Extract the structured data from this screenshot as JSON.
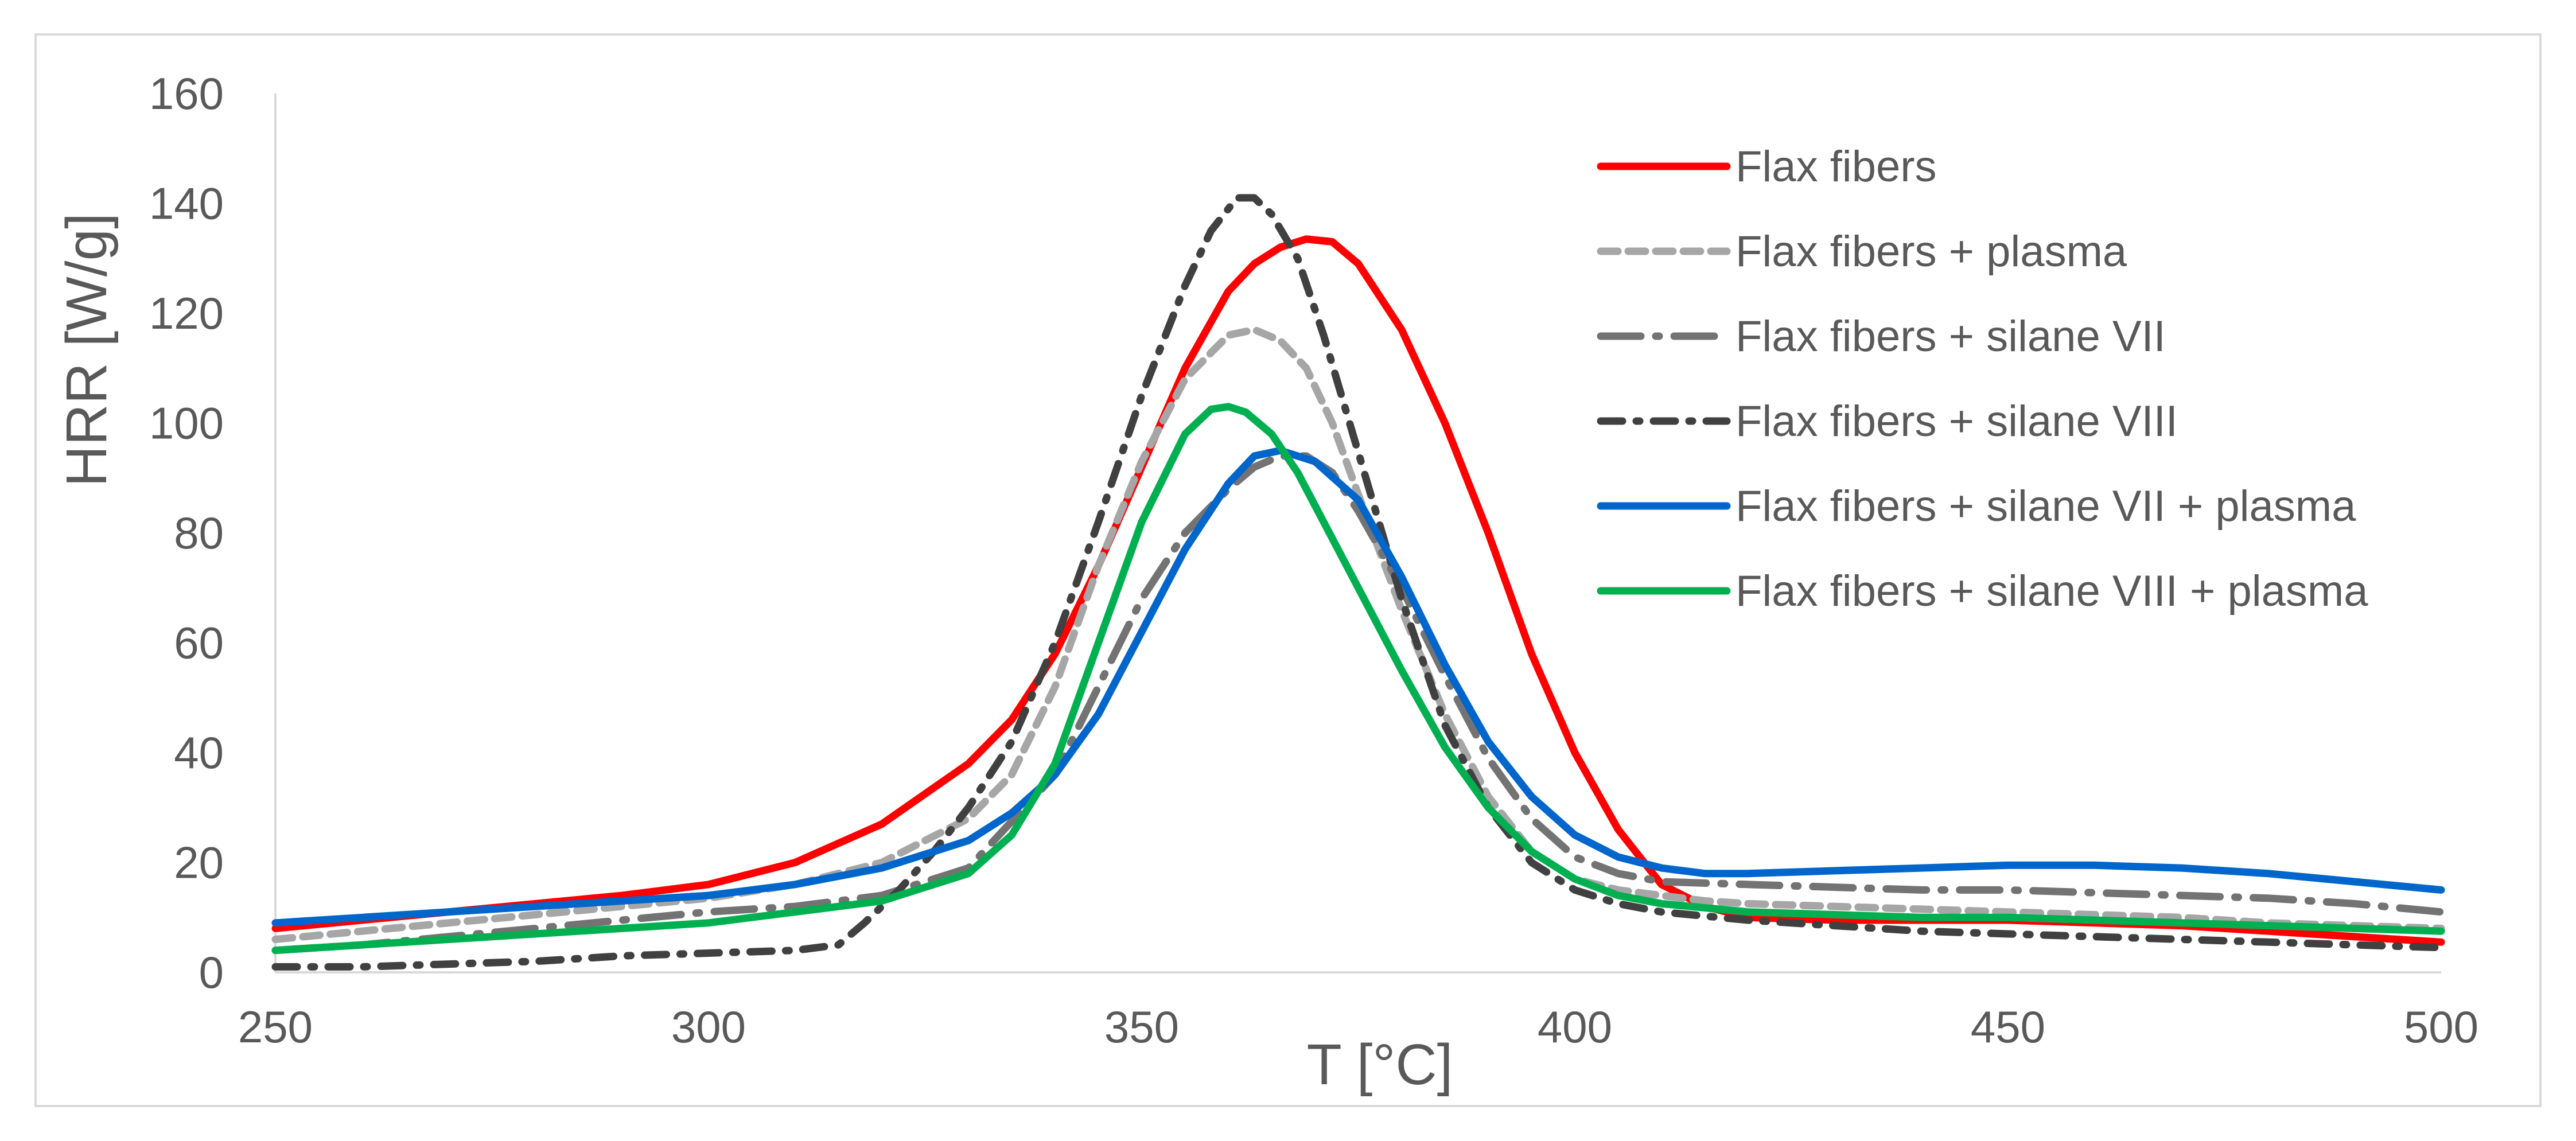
{
  "chart_data": {
    "type": "line",
    "title": "",
    "xlabel": "T [°C]",
    "ylabel": "HRR [W/g]",
    "xlim": [
      250,
      500
    ],
    "ylim": [
      0,
      160
    ],
    "xticks": [
      250,
      300,
      350,
      400,
      450,
      500
    ],
    "yticks": [
      0,
      20,
      40,
      60,
      80,
      100,
      120,
      140,
      160
    ],
    "grid": false,
    "legend_position": "top-right",
    "series": [
      {
        "name": "Flax fibers",
        "color": "#ff0000",
        "style": "solid",
        "x": [
          250,
          260,
          270,
          280,
          290,
          300,
          310,
          320,
          330,
          335,
          340,
          345,
          350,
          355,
          360,
          363,
          366,
          369,
          372,
          375,
          380,
          385,
          390,
          395,
          400,
          405,
          410,
          415,
          420,
          430,
          440,
          450,
          460,
          470,
          480,
          490,
          500
        ],
        "y": [
          8,
          9.5,
          11,
          12.5,
          14,
          16,
          20,
          27,
          38,
          46,
          58,
          74,
          92,
          110,
          124,
          129,
          132,
          133.5,
          133,
          129,
          117,
          100,
          80,
          58,
          40,
          26,
          16,
          12,
          10,
          9.5,
          9.5,
          9.5,
          9,
          8.5,
          7.5,
          6.5,
          5.5
        ]
      },
      {
        "name": "Flax fibers + plasma",
        "color": "#a6a6a6",
        "style": "dashed",
        "x": [
          250,
          260,
          270,
          280,
          290,
          300,
          310,
          320,
          330,
          335,
          340,
          345,
          350,
          355,
          360,
          363,
          366,
          369,
          372,
          375,
          380,
          385,
          390,
          395,
          400,
          405,
          410,
          415,
          420,
          430,
          440,
          450,
          460,
          470,
          480,
          490,
          500
        ],
        "y": [
          6,
          7.5,
          9,
          10.5,
          12,
          13.5,
          16,
          20,
          28,
          36,
          52,
          74,
          93,
          108,
          116,
          117,
          115,
          110,
          100,
          87,
          66,
          47,
          32,
          22,
          17,
          15,
          14,
          13,
          12.5,
          12,
          11.5,
          11,
          10.5,
          10,
          9,
          8.5,
          8
        ]
      },
      {
        "name": "Flax fibers + silane VII",
        "color": "#737373",
        "style": "longdash-dot",
        "x": [
          250,
          260,
          270,
          280,
          290,
          300,
          310,
          320,
          330,
          340,
          345,
          350,
          355,
          360,
          363,
          366,
          369,
          372,
          375,
          380,
          385,
          390,
          395,
          400,
          405,
          410,
          420,
          430,
          440,
          450,
          460,
          470,
          480,
          490,
          500
        ],
        "y": [
          4,
          5,
          6.5,
          8,
          9.5,
          11,
          12,
          14,
          19,
          36,
          52,
          68,
          80,
          88,
          92,
          94,
          94,
          91,
          84,
          70,
          54,
          39,
          28,
          21,
          18,
          16.5,
          16,
          15.5,
          15,
          15,
          14.5,
          14,
          13.5,
          12.5,
          11
        ]
      },
      {
        "name": "Flax fibers + silane VIII",
        "color": "#404040",
        "style": "dash-dot",
        "x": [
          250,
          260,
          270,
          280,
          290,
          300,
          310,
          315,
          318,
          322,
          326,
          330,
          335,
          340,
          345,
          350,
          355,
          358,
          361,
          363,
          365,
          368,
          371,
          374,
          377,
          380,
          385,
          390,
          395,
          400,
          405,
          410,
          420,
          430,
          440,
          450,
          460,
          470,
          480,
          490,
          500
        ],
        "y": [
          1,
          1,
          1.5,
          2,
          3,
          3.5,
          4,
          5,
          9,
          15,
          22,
          30,
          42,
          60,
          82,
          105,
          125,
          135,
          141,
          141,
          138,
          130,
          116,
          100,
          84,
          68,
          45,
          30,
          20,
          15,
          12.5,
          11,
          9.5,
          8.5,
          7.5,
          7,
          6.5,
          6,
          5.5,
          5,
          4.5
        ]
      },
      {
        "name": "Flax fibers + silane VII + plasma",
        "color": "#0066cc",
        "style": "solid",
        "x": [
          250,
          260,
          270,
          280,
          290,
          300,
          310,
          320,
          330,
          335,
          340,
          345,
          350,
          355,
          360,
          363,
          366,
          370,
          375,
          380,
          385,
          390,
          395,
          400,
          405,
          410,
          415,
          420,
          430,
          440,
          450,
          460,
          470,
          480,
          490,
          500
        ],
        "y": [
          9,
          10,
          11,
          12,
          13,
          14,
          16,
          19,
          24,
          29,
          36,
          47,
          62,
          77,
          89,
          94,
          95,
          93,
          86,
          72,
          56,
          42,
          32,
          25,
          21,
          19,
          18,
          18,
          18.5,
          19,
          19.5,
          19.5,
          19,
          18,
          16.5,
          15
        ]
      },
      {
        "name": "Flax fibers + silane VIII + plasma",
        "color": "#00b050",
        "style": "solid",
        "x": [
          250,
          260,
          270,
          280,
          290,
          300,
          310,
          320,
          330,
          335,
          340,
          345,
          350,
          355,
          358,
          360,
          362,
          365,
          368,
          371,
          375,
          380,
          385,
          390,
          395,
          400,
          405,
          410,
          420,
          430,
          440,
          450,
          460,
          470,
          480,
          490,
          500
        ],
        "y": [
          4,
          5,
          6,
          7,
          8,
          9,
          11,
          13,
          18,
          25,
          38,
          60,
          82,
          98,
          102.5,
          103,
          102,
          98,
          91,
          82,
          70,
          55,
          41,
          30,
          22,
          17,
          14,
          12.5,
          11,
          10.5,
          10,
          10,
          9.5,
          9,
          8.5,
          8,
          7.5
        ]
      }
    ]
  }
}
